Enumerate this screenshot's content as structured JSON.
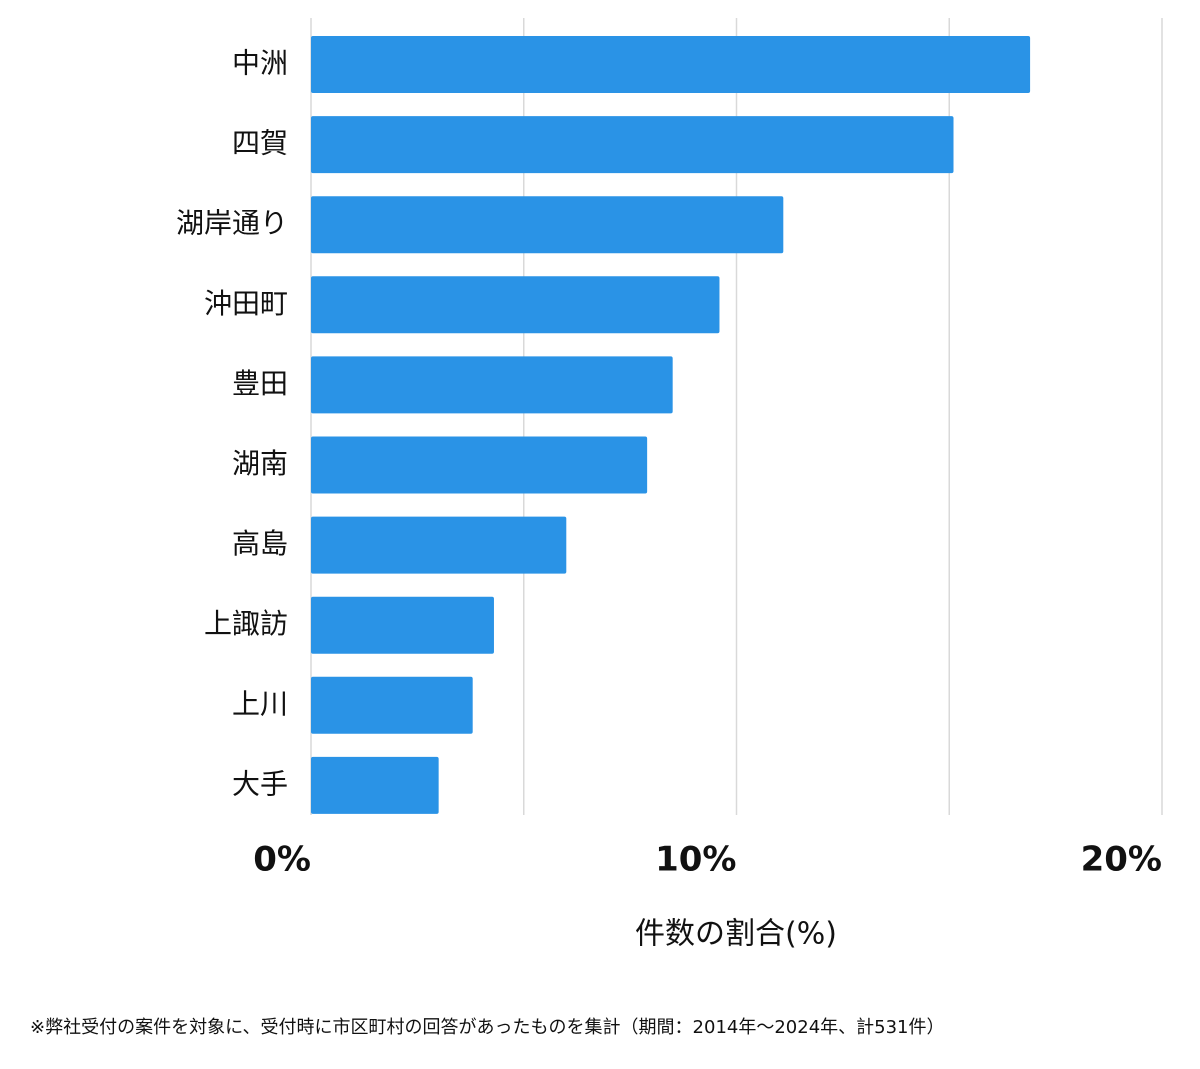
{
  "chart_data": {
    "type": "barh",
    "x_label": "件数の割合(%)",
    "note": "※弊社受付の案件を対象に、受付時に市区町村の回答があったものを集計（期間：2014年～2024年、計531件）",
    "categories": [
      "中洲",
      "四賀",
      "湖岸通り",
      "沖田町",
      "豊田",
      "湖南",
      "高島",
      "上諏訪",
      "上川",
      "大手"
    ],
    "values": [
      16.9,
      15.1,
      11.1,
      9.6,
      8.5,
      7.9,
      6.0,
      4.3,
      3.8,
      3.0
    ],
    "color": "#2a93e6",
    "xlim": [
      0,
      20
    ],
    "xticks": [
      {
        "value": 0,
        "label": "0%"
      },
      {
        "value": 10,
        "label": "10%"
      },
      {
        "value": 20,
        "label": "20%"
      }
    ],
    "minor_xticks": [
      5,
      15
    ],
    "grid": true
  }
}
